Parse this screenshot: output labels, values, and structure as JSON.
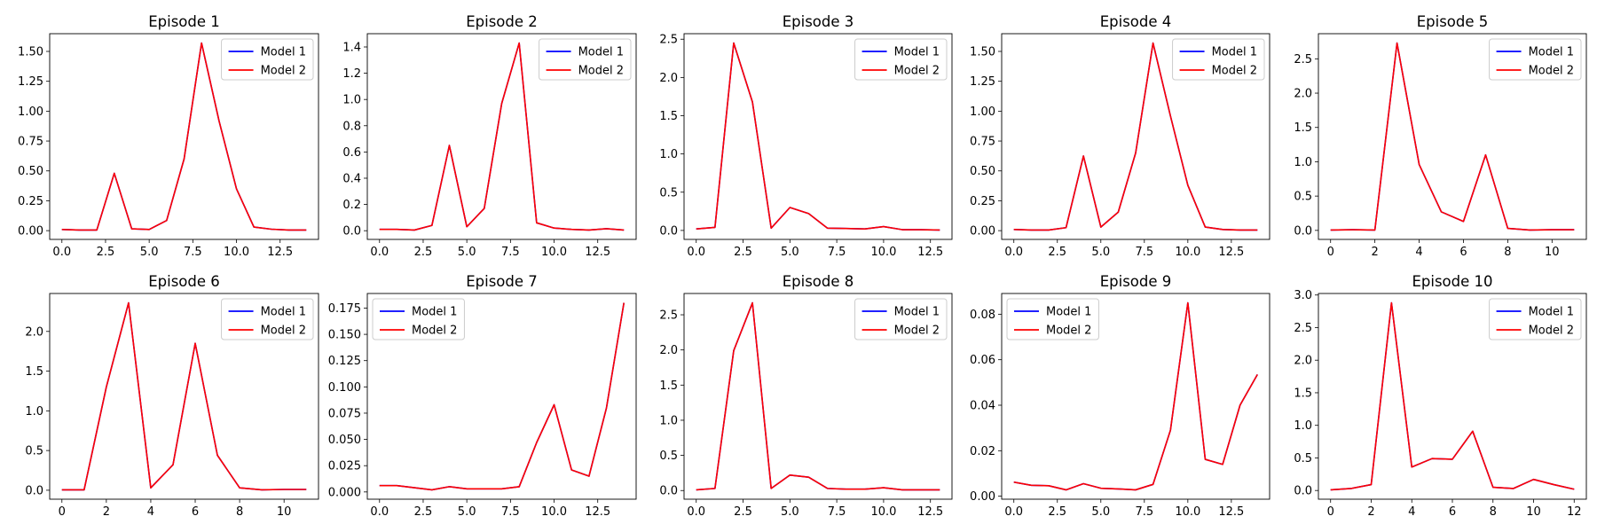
{
  "chart_data": [
    {
      "type": "line",
      "title": "Episode 1",
      "x": [
        0,
        1,
        2,
        3,
        4,
        5,
        6,
        7,
        8,
        9,
        10,
        11,
        12,
        13,
        14
      ],
      "xticks": [
        0,
        2.5,
        5,
        7.5,
        10,
        12.5
      ],
      "xtick_labels": [
        "0.0",
        "2.5",
        "5.0",
        "7.5",
        "10.0",
        "12.5"
      ],
      "yticks": [
        0,
        0.25,
        0.5,
        0.75,
        1.0,
        1.25,
        1.5
      ],
      "ytick_labels": [
        "0.00",
        "0.25",
        "0.50",
        "0.75",
        "1.00",
        "1.25",
        "1.50"
      ],
      "legend": "upper right",
      "series": [
        {
          "name": "Model 1",
          "color": "#0000ff",
          "values": [
            0.01,
            0.005,
            0.005,
            0.48,
            0.015,
            0.01,
            0.085,
            0.6,
            1.57,
            0.92,
            0.35,
            0.03,
            0.012,
            0.005,
            0.005
          ]
        },
        {
          "name": "Model 2",
          "color": "#ff0000",
          "values": [
            0.01,
            0.005,
            0.005,
            0.48,
            0.015,
            0.01,
            0.085,
            0.6,
            1.57,
            0.92,
            0.35,
            0.03,
            0.012,
            0.005,
            0.005
          ]
        }
      ]
    },
    {
      "type": "line",
      "title": "Episode 2",
      "x": [
        0,
        1,
        2,
        3,
        4,
        5,
        6,
        7,
        8,
        9,
        10,
        11,
        12,
        13,
        14
      ],
      "xticks": [
        0,
        2.5,
        5,
        7.5,
        10,
        12.5
      ],
      "xtick_labels": [
        "0.0",
        "2.5",
        "5.0",
        "7.5",
        "10.0",
        "12.5"
      ],
      "yticks": [
        0,
        0.2,
        0.4,
        0.6,
        0.8,
        1.0,
        1.2,
        1.4
      ],
      "ytick_labels": [
        "0.0",
        "0.2",
        "0.4",
        "0.6",
        "0.8",
        "1.0",
        "1.2",
        "1.4"
      ],
      "legend": "upper right",
      "series": [
        {
          "name": "Model 1",
          "color": "#0000ff",
          "values": [
            0.01,
            0.01,
            0.005,
            0.04,
            0.65,
            0.03,
            0.17,
            0.97,
            1.43,
            0.06,
            0.02,
            0.01,
            0.005,
            0.015,
            0.005
          ]
        },
        {
          "name": "Model 2",
          "color": "#ff0000",
          "values": [
            0.01,
            0.01,
            0.005,
            0.04,
            0.65,
            0.03,
            0.17,
            0.97,
            1.43,
            0.06,
            0.02,
            0.01,
            0.005,
            0.015,
            0.005
          ]
        }
      ]
    },
    {
      "type": "line",
      "title": "Episode 3",
      "x": [
        0,
        1,
        2,
        3,
        4,
        5,
        6,
        7,
        8,
        9,
        10,
        11,
        12,
        13
      ],
      "xticks": [
        0,
        2.5,
        5,
        7.5,
        10,
        12.5
      ],
      "xtick_labels": [
        "0.0",
        "2.5",
        "5.0",
        "7.5",
        "10.0",
        "12.5"
      ],
      "yticks": [
        0,
        0.5,
        1.0,
        1.5,
        2.0,
        2.5
      ],
      "ytick_labels": [
        "0.0",
        "0.5",
        "1.0",
        "1.5",
        "2.0",
        "2.5"
      ],
      "legend": "upper right",
      "series": [
        {
          "name": "Model 1",
          "color": "#0000ff",
          "values": [
            0.02,
            0.04,
            2.45,
            1.68,
            0.03,
            0.3,
            0.22,
            0.03,
            0.025,
            0.02,
            0.05,
            0.01,
            0.01,
            0.005
          ]
        },
        {
          "name": "Model 2",
          "color": "#ff0000",
          "values": [
            0.02,
            0.04,
            2.45,
            1.68,
            0.03,
            0.3,
            0.22,
            0.03,
            0.025,
            0.02,
            0.05,
            0.01,
            0.01,
            0.005
          ]
        }
      ]
    },
    {
      "type": "line",
      "title": "Episode 4",
      "x": [
        0,
        1,
        2,
        3,
        4,
        5,
        6,
        7,
        8,
        9,
        10,
        11,
        12,
        13,
        14
      ],
      "xticks": [
        0,
        2.5,
        5,
        7.5,
        10,
        12.5
      ],
      "xtick_labels": [
        "0.0",
        "2.5",
        "5.0",
        "7.5",
        "10.0",
        "12.5"
      ],
      "yticks": [
        0,
        0.25,
        0.5,
        0.75,
        1.0,
        1.25,
        1.5
      ],
      "ytick_labels": [
        "0.00",
        "0.25",
        "0.50",
        "0.75",
        "1.00",
        "1.25",
        "1.50"
      ],
      "legend": "upper right",
      "series": [
        {
          "name": "Model 1",
          "color": "#0000ff",
          "values": [
            0.01,
            0.005,
            0.005,
            0.025,
            0.625,
            0.03,
            0.155,
            0.65,
            1.57,
            0.96,
            0.38,
            0.03,
            0.01,
            0.005,
            0.005
          ]
        },
        {
          "name": "Model 2",
          "color": "#ff0000",
          "values": [
            0.01,
            0.005,
            0.005,
            0.025,
            0.625,
            0.03,
            0.155,
            0.65,
            1.57,
            0.96,
            0.38,
            0.03,
            0.01,
            0.005,
            0.005
          ]
        }
      ]
    },
    {
      "type": "line",
      "title": "Episode 5",
      "x": [
        0,
        1,
        2,
        3,
        4,
        5,
        6,
        7,
        8,
        9,
        10,
        11
      ],
      "xticks": [
        0,
        2,
        4,
        6,
        8,
        10
      ],
      "xtick_labels": [
        "0",
        "2",
        "4",
        "6",
        "8",
        "10"
      ],
      "yticks": [
        0,
        0.5,
        1.0,
        1.5,
        2.0,
        2.5
      ],
      "ytick_labels": [
        "0.0",
        "0.5",
        "1.0",
        "1.5",
        "2.0",
        "2.5"
      ],
      "legend": "upper right",
      "series": [
        {
          "name": "Model 1",
          "color": "#0000ff",
          "values": [
            0.005,
            0.01,
            0.005,
            2.73,
            0.96,
            0.27,
            0.13,
            1.1,
            0.03,
            0.005,
            0.01,
            0.01
          ]
        },
        {
          "name": "Model 2",
          "color": "#ff0000",
          "values": [
            0.005,
            0.01,
            0.005,
            2.73,
            0.96,
            0.27,
            0.13,
            1.1,
            0.03,
            0.005,
            0.01,
            0.01
          ]
        }
      ]
    },
    {
      "type": "line",
      "title": "Episode 6",
      "x": [
        0,
        1,
        2,
        3,
        4,
        5,
        6,
        7,
        8,
        9,
        10,
        11
      ],
      "xticks": [
        0,
        2,
        4,
        6,
        8,
        10
      ],
      "xtick_labels": [
        "0",
        "2",
        "4",
        "6",
        "8",
        "10"
      ],
      "yticks": [
        0,
        0.5,
        1.0,
        1.5,
        2.0
      ],
      "ytick_labels": [
        "0.0",
        "0.5",
        "1.0",
        "1.5",
        "2.0"
      ],
      "legend": "upper right",
      "series": [
        {
          "name": "Model 1",
          "color": "#0000ff",
          "values": [
            0.005,
            0.005,
            1.3,
            2.36,
            0.03,
            0.32,
            1.85,
            0.44,
            0.03,
            0.005,
            0.01,
            0.01
          ]
        },
        {
          "name": "Model 2",
          "color": "#ff0000",
          "values": [
            0.005,
            0.005,
            1.3,
            2.36,
            0.03,
            0.32,
            1.85,
            0.44,
            0.03,
            0.005,
            0.01,
            0.01
          ]
        }
      ]
    },
    {
      "type": "line",
      "title": "Episode 7",
      "x": [
        0,
        1,
        2,
        3,
        4,
        5,
        6,
        7,
        8,
        9,
        10,
        11,
        12,
        13,
        14
      ],
      "xticks": [
        0,
        2.5,
        5,
        7.5,
        10,
        12.5
      ],
      "xtick_labels": [
        "0.0",
        "2.5",
        "5.0",
        "7.5",
        "10.0",
        "12.5"
      ],
      "yticks": [
        0,
        0.025,
        0.05,
        0.075,
        0.1,
        0.125,
        0.15,
        0.175
      ],
      "ytick_labels": [
        "0.000",
        "0.025",
        "0.050",
        "0.075",
        "0.100",
        "0.125",
        "0.150",
        "0.175"
      ],
      "legend": "upper left",
      "series": [
        {
          "name": "Model 1",
          "color": "#0000ff",
          "values": [
            0.006,
            0.006,
            0.004,
            0.002,
            0.005,
            0.003,
            0.003,
            0.003,
            0.005,
            0.047,
            0.083,
            0.021,
            0.015,
            0.08,
            0.18
          ]
        },
        {
          "name": "Model 2",
          "color": "#ff0000",
          "values": [
            0.006,
            0.006,
            0.004,
            0.002,
            0.005,
            0.003,
            0.003,
            0.003,
            0.005,
            0.047,
            0.083,
            0.021,
            0.015,
            0.08,
            0.18
          ]
        }
      ]
    },
    {
      "type": "line",
      "title": "Episode 8",
      "x": [
        0,
        1,
        2,
        3,
        4,
        5,
        6,
        7,
        8,
        9,
        10,
        11,
        12,
        13
      ],
      "xticks": [
        0,
        2.5,
        5,
        7.5,
        10,
        12.5
      ],
      "xtick_labels": [
        "0.0",
        "2.5",
        "5.0",
        "7.5",
        "10.0",
        "12.5"
      ],
      "yticks": [
        0,
        0.5,
        1.0,
        1.5,
        2.0,
        2.5
      ],
      "ytick_labels": [
        "0.0",
        "0.5",
        "1.0",
        "1.5",
        "2.0",
        "2.5"
      ],
      "legend": "upper right",
      "series": [
        {
          "name": "Model 1",
          "color": "#0000ff",
          "values": [
            0.01,
            0.03,
            1.99,
            2.67,
            0.03,
            0.22,
            0.19,
            0.03,
            0.02,
            0.02,
            0.04,
            0.01,
            0.01,
            0.01
          ]
        },
        {
          "name": "Model 2",
          "color": "#ff0000",
          "values": [
            0.01,
            0.03,
            1.99,
            2.67,
            0.03,
            0.22,
            0.19,
            0.03,
            0.02,
            0.02,
            0.04,
            0.01,
            0.01,
            0.01
          ]
        }
      ]
    },
    {
      "type": "line",
      "title": "Episode 9",
      "x": [
        0,
        1,
        2,
        3,
        4,
        5,
        6,
        7,
        8,
        9,
        10,
        11,
        12,
        13,
        14
      ],
      "xticks": [
        0,
        2.5,
        5,
        7.5,
        10,
        12.5
      ],
      "xtick_labels": [
        "0.0",
        "2.5",
        "5.0",
        "7.5",
        "10.0",
        "12.5"
      ],
      "yticks": [
        0,
        0.02,
        0.04,
        0.06,
        0.08
      ],
      "ytick_labels": [
        "0.00",
        "0.02",
        "0.04",
        "0.06",
        "0.08"
      ],
      "legend": "upper left",
      "series": [
        {
          "name": "Model 1",
          "color": "#0000ff",
          "values": [
            0.0062,
            0.0048,
            0.0046,
            0.0028,
            0.0055,
            0.0035,
            0.0032,
            0.0028,
            0.0052,
            0.029,
            0.085,
            0.0162,
            0.014,
            0.04,
            0.0535
          ]
        },
        {
          "name": "Model 2",
          "color": "#ff0000",
          "values": [
            0.0062,
            0.0048,
            0.0046,
            0.0028,
            0.0055,
            0.0035,
            0.0032,
            0.0028,
            0.0052,
            0.029,
            0.085,
            0.0162,
            0.014,
            0.04,
            0.0535
          ]
        }
      ]
    },
    {
      "type": "line",
      "title": "Episode 10",
      "x": [
        0,
        1,
        2,
        3,
        4,
        5,
        6,
        7,
        8,
        9,
        10,
        11,
        12
      ],
      "xticks": [
        0,
        2,
        4,
        6,
        8,
        10,
        12
      ],
      "xtick_labels": [
        "0",
        "2",
        "4",
        "6",
        "8",
        "10",
        "12"
      ],
      "yticks": [
        0,
        0.5,
        1.0,
        1.5,
        2.0,
        2.5,
        3.0
      ],
      "ytick_labels": [
        "0.0",
        "0.5",
        "1.0",
        "1.5",
        "2.0",
        "2.5",
        "3.0"
      ],
      "legend": "upper right",
      "series": [
        {
          "name": "Model 1",
          "color": "#0000ff",
          "values": [
            0.01,
            0.03,
            0.09,
            2.88,
            0.36,
            0.49,
            0.48,
            0.91,
            0.05,
            0.03,
            0.17,
            0.09,
            0.02
          ]
        },
        {
          "name": "Model 2",
          "color": "#ff0000",
          "values": [
            0.01,
            0.03,
            0.09,
            2.88,
            0.36,
            0.49,
            0.48,
            0.91,
            0.05,
            0.03,
            0.17,
            0.09,
            0.02
          ]
        }
      ]
    }
  ]
}
